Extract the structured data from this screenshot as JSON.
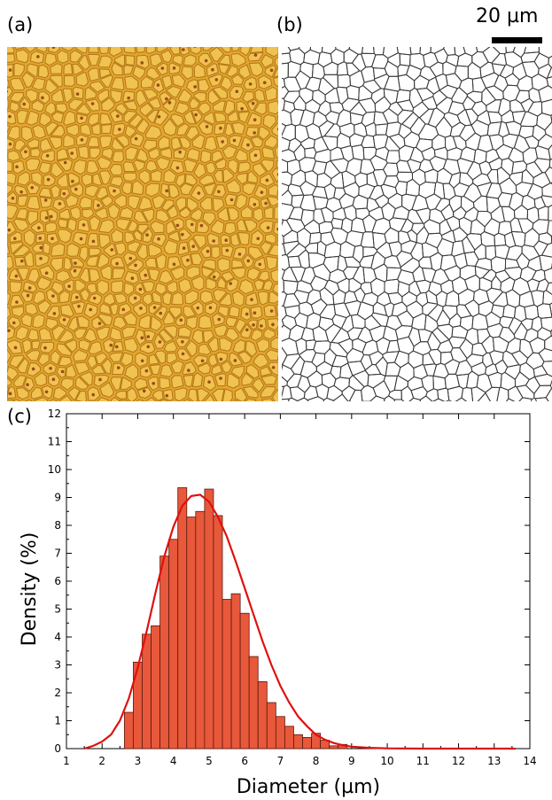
{
  "panels": {
    "a": "(a)",
    "b": "(b)",
    "c": "(c)"
  },
  "scale_bar": {
    "label": "20 µm"
  },
  "colors": {
    "micrograph_base": "#e3a62f",
    "bar_fill": "#e8583a",
    "bar_edge": "#5a1a10",
    "fit_line": "#e01010",
    "cell_edge": "#3a3a3a"
  },
  "chart_data": {
    "type": "bar",
    "xlabel": "Diameter (µm)",
    "ylabel": "Density (%)",
    "xlim": [
      1,
      14
    ],
    "ylim": [
      0,
      12
    ],
    "xticks": [
      1,
      2,
      3,
      4,
      5,
      6,
      7,
      8,
      9,
      10,
      11,
      12,
      13,
      14
    ],
    "yticks": [
      0,
      1,
      2,
      3,
      4,
      5,
      6,
      7,
      8,
      9,
      10,
      11,
      12
    ],
    "bin_width": 0.25,
    "bin_centers": [
      2.75,
      3.0,
      3.25,
      3.5,
      3.75,
      4.0,
      4.25,
      4.5,
      4.75,
      5.0,
      5.25,
      5.5,
      5.75,
      6.0,
      6.25,
      6.5,
      6.75,
      7.0,
      7.25,
      7.5,
      7.75,
      8.0,
      8.25,
      8.5,
      8.75
    ],
    "values": [
      1.3,
      3.1,
      4.1,
      4.4,
      6.9,
      7.5,
      9.35,
      8.3,
      8.5,
      9.3,
      8.35,
      5.35,
      5.55,
      4.85,
      3.3,
      2.4,
      1.65,
      1.15,
      0.8,
      0.5,
      0.4,
      0.55,
      0.3,
      0.1,
      0.15
    ],
    "fit_curve": {
      "type": "gaussian",
      "x": [
        1.5,
        1.75,
        2.0,
        2.25,
        2.5,
        2.75,
        3.0,
        3.25,
        3.5,
        3.75,
        4.0,
        4.25,
        4.5,
        4.75,
        5.0,
        5.25,
        5.5,
        5.75,
        6.0,
        6.25,
        6.5,
        6.75,
        7.0,
        7.25,
        7.5,
        7.75,
        8.0,
        8.25,
        8.5,
        8.75,
        9.0,
        9.5,
        10,
        11,
        12,
        13,
        13.6
      ],
      "y": [
        0.0,
        0.1,
        0.25,
        0.5,
        1.0,
        1.8,
        2.9,
        4.2,
        5.6,
        6.9,
        7.95,
        8.7,
        9.05,
        9.1,
        8.85,
        8.3,
        7.6,
        6.7,
        5.75,
        4.8,
        3.85,
        3.0,
        2.25,
        1.65,
        1.15,
        0.8,
        0.5,
        0.32,
        0.2,
        0.12,
        0.07,
        0.03,
        0.01,
        0.0,
        0.0,
        0.0,
        0.0
      ]
    }
  }
}
